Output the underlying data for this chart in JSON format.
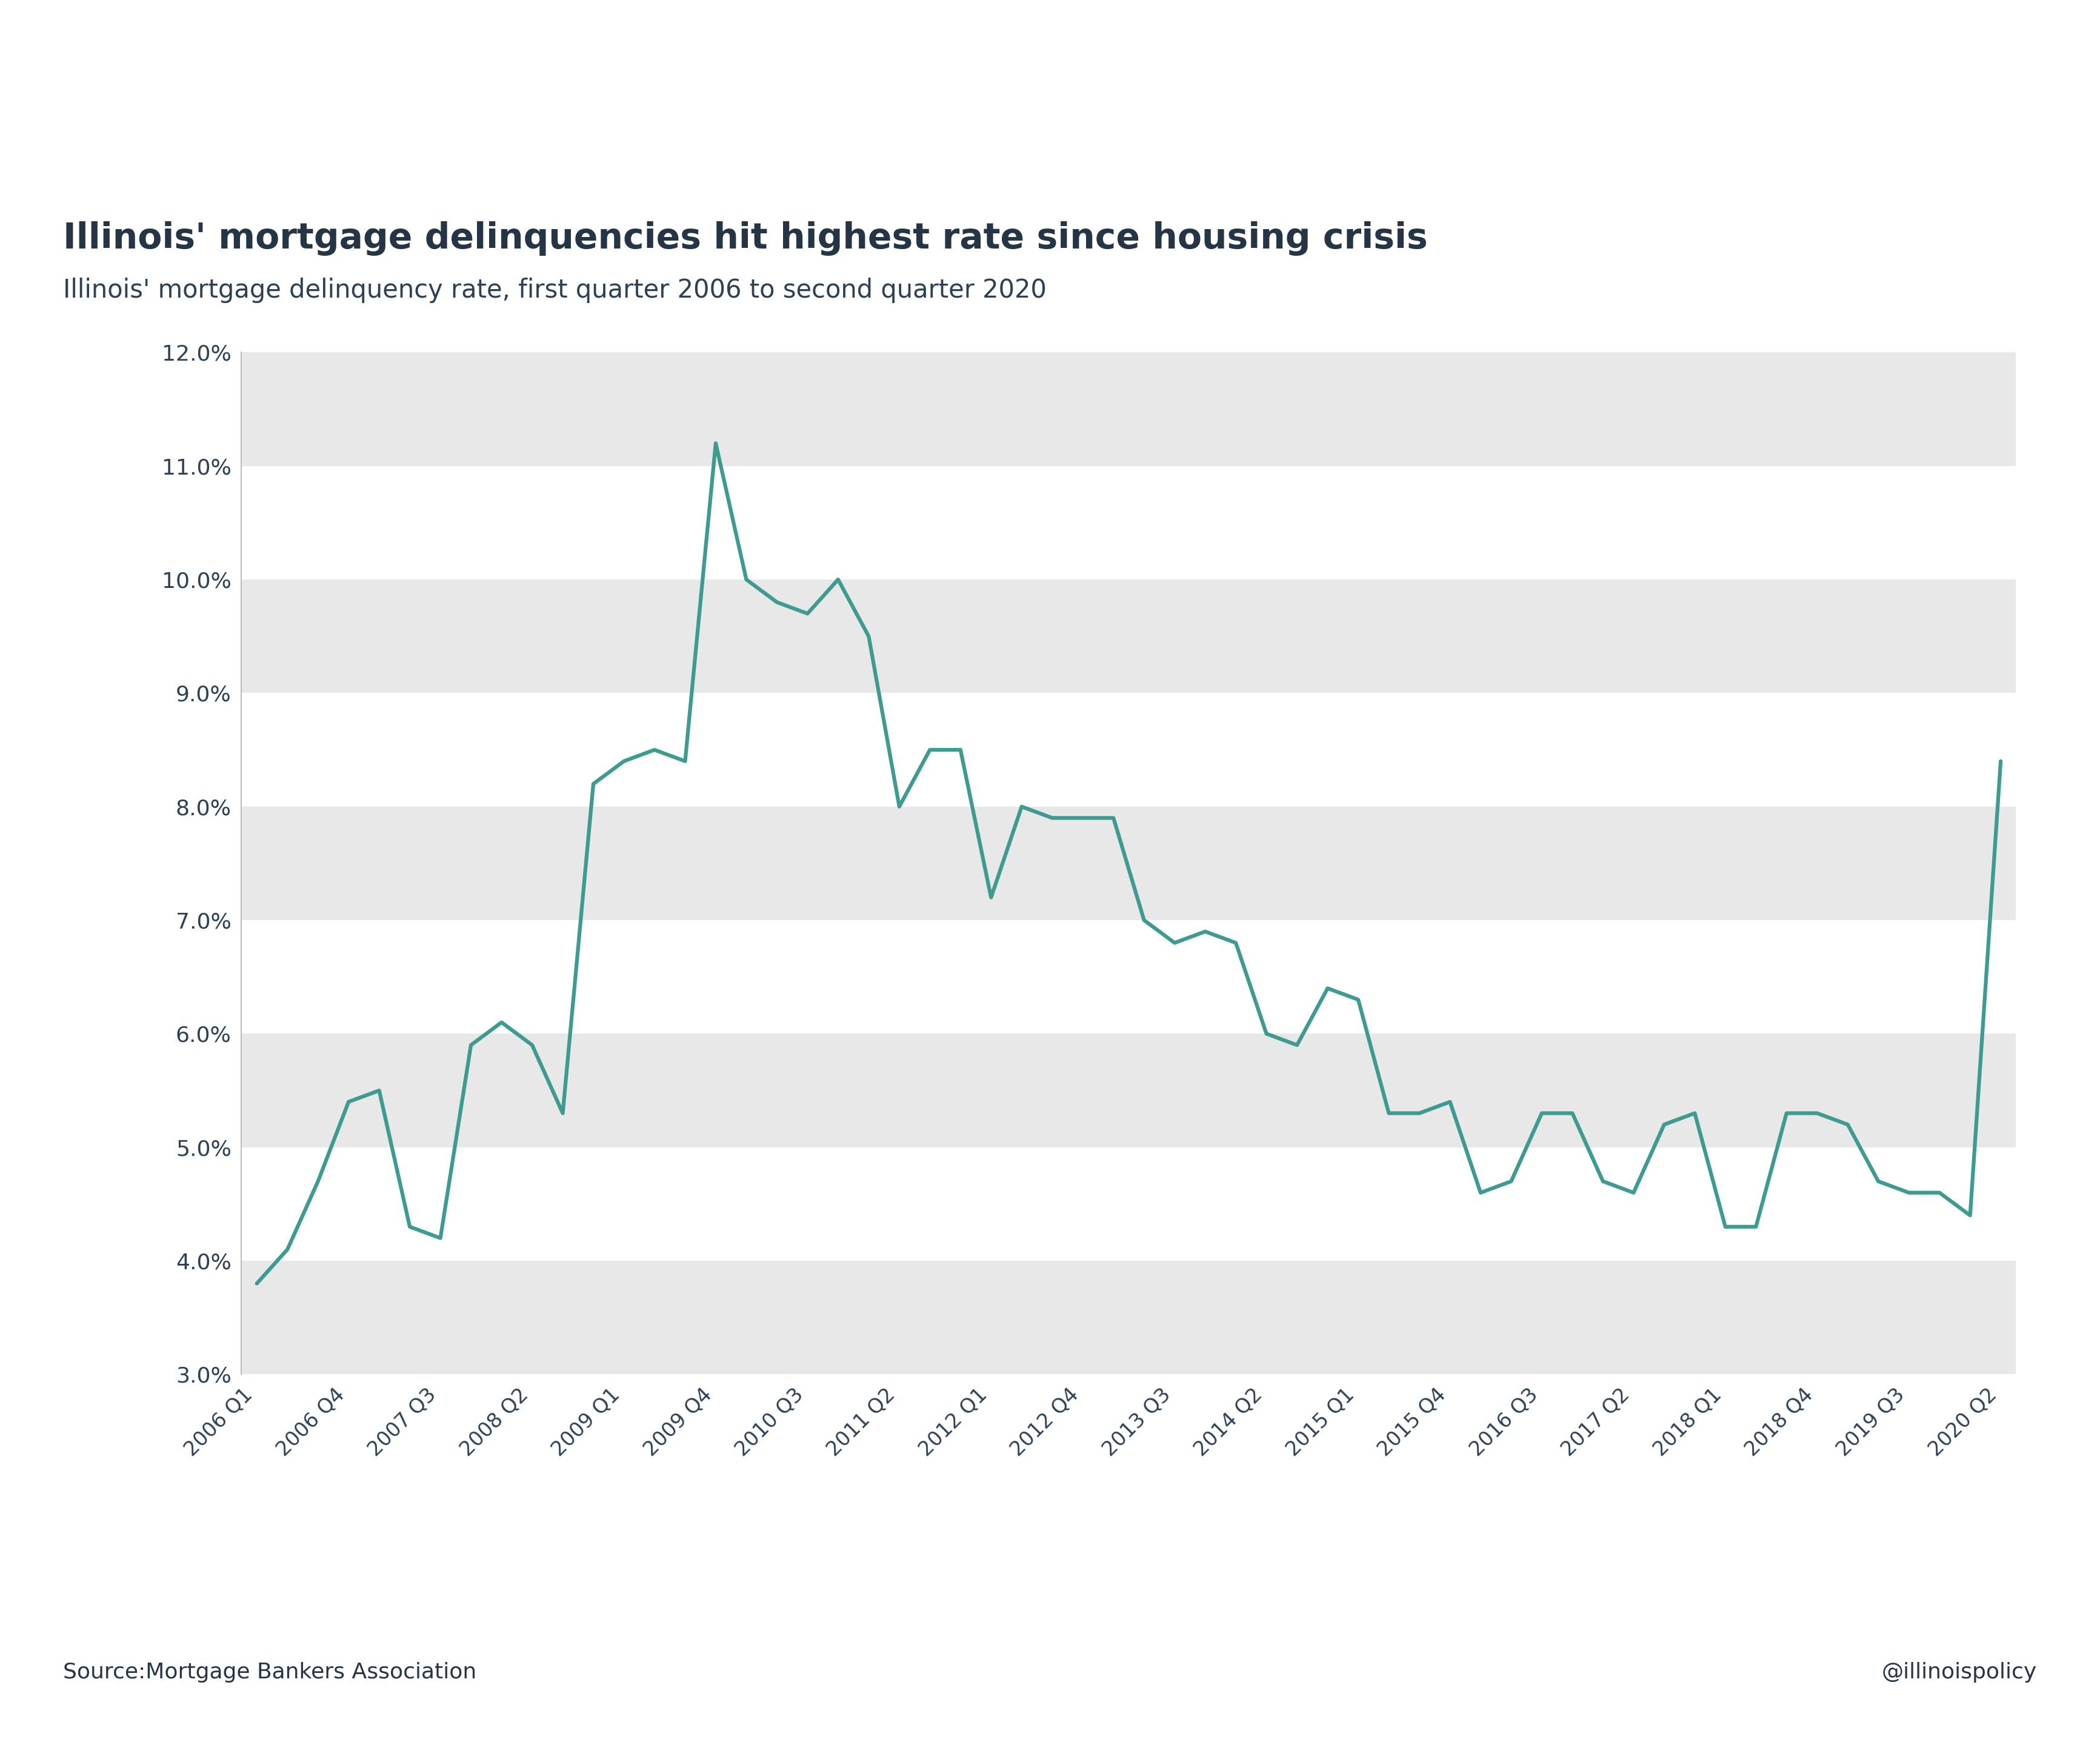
{
  "title": "Illinois' mortgage delinquencies hit highest rate since housing crisis",
  "subtitle": "Illinois' mortgage delinquency rate, first quarter 2006 to second quarter 2020",
  "source_text": "Source:Mortgage Bankers Association",
  "watermark": "@illinoispolicy",
  "line_color": "#3d9b8f",
  "title_color": "#253545",
  "subtitle_color": "#2d4155",
  "axis_color": "#2d4155",
  "background_color": "#ffffff",
  "band_colors": [
    "#e8e8e8",
    "#ffffff"
  ],
  "ylim": [
    0.03,
    0.12
  ],
  "yticks": [
    0.03,
    0.04,
    0.05,
    0.06,
    0.07,
    0.08,
    0.09,
    0.1,
    0.11,
    0.12
  ],
  "ytick_labels": [
    "3.0%",
    "4.0%",
    "5.0%",
    "6.0%",
    "7.0%",
    "8.0%",
    "9.0%",
    "10.0%",
    "11.0%",
    "12.0%"
  ],
  "x_labels": [
    "2006 Q1",
    "2006 Q4",
    "2007 Q3",
    "2008 Q2",
    "2009 Q1",
    "2009 Q4",
    "2010 Q3",
    "2011 Q2",
    "2012 Q1",
    "2012 Q4",
    "2013 Q3",
    "2014 Q2",
    "2015 Q1",
    "2015 Q4",
    "2016 Q3",
    "2017 Q2",
    "2018 Q1",
    "2018 Q4",
    "2019 Q3",
    "2020 Q2"
  ],
  "quarters": [
    "2006 Q1",
    "2006 Q2",
    "2006 Q3",
    "2006 Q4",
    "2007 Q1",
    "2007 Q2",
    "2007 Q3",
    "2007 Q4",
    "2008 Q1",
    "2008 Q2",
    "2008 Q3",
    "2008 Q4",
    "2009 Q1",
    "2009 Q2",
    "2009 Q3",
    "2009 Q4",
    "2010 Q1",
    "2010 Q2",
    "2010 Q3",
    "2010 Q4",
    "2011 Q1",
    "2011 Q2",
    "2011 Q3",
    "2011 Q4",
    "2012 Q1",
    "2012 Q2",
    "2012 Q3",
    "2012 Q4",
    "2013 Q1",
    "2013 Q2",
    "2013 Q3",
    "2013 Q4",
    "2014 Q1",
    "2014 Q2",
    "2014 Q3",
    "2014 Q4",
    "2015 Q1",
    "2015 Q2",
    "2015 Q3",
    "2015 Q4",
    "2016 Q1",
    "2016 Q2",
    "2016 Q3",
    "2016 Q4",
    "2017 Q1",
    "2017 Q2",
    "2017 Q3",
    "2017 Q4",
    "2018 Q1",
    "2018 Q2",
    "2018 Q3",
    "2018 Q4",
    "2019 Q1",
    "2019 Q2",
    "2019 Q3",
    "2019 Q4",
    "2020 Q1",
    "2020 Q2"
  ],
  "values": [
    0.038,
    0.041,
    0.047,
    0.054,
    0.055,
    0.043,
    0.042,
    0.059,
    0.061,
    0.059,
    0.053,
    0.082,
    0.084,
    0.085,
    0.084,
    0.112,
    0.1,
    0.098,
    0.097,
    0.1,
    0.095,
    0.08,
    0.085,
    0.085,
    0.072,
    0.08,
    0.079,
    0.079,
    0.079,
    0.07,
    0.068,
    0.069,
    0.068,
    0.06,
    0.059,
    0.064,
    0.063,
    0.053,
    0.053,
    0.054,
    0.046,
    0.047,
    0.053,
    0.053,
    0.047,
    0.046,
    0.052,
    0.053,
    0.043,
    0.043,
    0.053,
    0.053,
    0.052,
    0.047,
    0.046,
    0.046,
    0.044,
    0.084
  ]
}
